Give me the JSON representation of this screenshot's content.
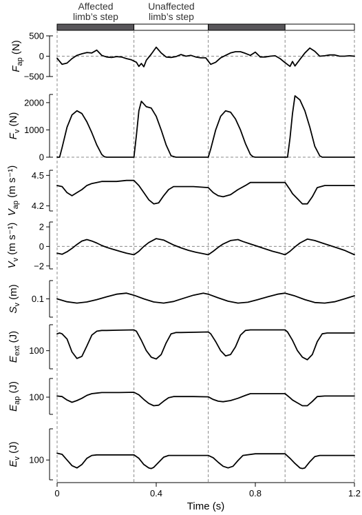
{
  "header": {
    "affected": [
      "Affected",
      "limb’s step"
    ],
    "unaffected": [
      "Unaffected",
      "limb’s step"
    ]
  },
  "colors": {
    "affected_bar": "#58565a",
    "unaffected_bar": "#ffffff",
    "trace": "#000000",
    "dashed": "#888888"
  },
  "chart_data": {
    "type": "line",
    "xlabel": "Time (s)",
    "xlim": [
      0,
      1.2
    ],
    "xticks": [
      0,
      0.4,
      0.8,
      1.2
    ],
    "xtick_labels": [
      "0",
      "0.4",
      "0.8",
      "1.2"
    ],
    "step_boundaries": [
      0,
      0.31,
      0.61,
      0.92,
      1.2
    ],
    "steps": [
      "affected",
      "unaffected",
      "affected",
      "unaffected"
    ],
    "panels": [
      {
        "id": "Fap",
        "label": {
          "main": "F",
          "sub": "ap",
          "unit": " (N)"
        },
        "ylim": [
          -500,
          500
        ],
        "ticks": [
          -500,
          0,
          500
        ],
        "tick_labels": [
          "−500",
          "0",
          "500"
        ],
        "zero_line": true,
        "x": [
          0,
          0.02,
          0.04,
          0.06,
          0.08,
          0.1,
          0.12,
          0.14,
          0.16,
          0.18,
          0.2,
          0.22,
          0.24,
          0.26,
          0.28,
          0.3,
          0.32,
          0.33,
          0.34,
          0.35,
          0.36,
          0.38,
          0.4,
          0.42,
          0.44,
          0.46,
          0.48,
          0.5,
          0.52,
          0.54,
          0.56,
          0.58,
          0.6,
          0.62,
          0.64,
          0.66,
          0.68,
          0.7,
          0.72,
          0.74,
          0.76,
          0.78,
          0.8,
          0.82,
          0.84,
          0.86,
          0.88,
          0.9,
          0.92,
          0.94,
          0.95,
          0.96,
          0.98,
          1.0,
          1.02,
          1.04,
          1.06,
          1.08,
          1.1,
          1.12,
          1.14,
          1.16,
          1.18,
          1.2
        ],
        "y": [
          -50,
          -200,
          -170,
          -60,
          20,
          60,
          90,
          80,
          150,
          20,
          -20,
          -30,
          -10,
          -20,
          -60,
          -90,
          -150,
          -250,
          -180,
          -260,
          -100,
          50,
          220,
          80,
          -20,
          -30,
          -10,
          40,
          0,
          20,
          -20,
          -40,
          -40,
          -200,
          -150,
          -40,
          20,
          80,
          110,
          110,
          70,
          20,
          100,
          -20,
          -20,
          0,
          10,
          -60,
          -160,
          -250,
          -130,
          -240,
          -80,
          80,
          200,
          120,
          0,
          10,
          30,
          30,
          0,
          0,
          10,
          0
        ]
      },
      {
        "id": "Fv",
        "label": {
          "main": "F",
          "sub": "v",
          "unit": " (N)"
        },
        "ylim": [
          0,
          2300
        ],
        "ticks": [
          0,
          1000,
          2000
        ],
        "tick_labels": [
          "0",
          "1000",
          "2000"
        ],
        "zero_line": true,
        "x": [
          0,
          0.01,
          0.02,
          0.04,
          0.06,
          0.08,
          0.1,
          0.12,
          0.14,
          0.16,
          0.18,
          0.19,
          0.2,
          0.22,
          0.3,
          0.31,
          0.32,
          0.33,
          0.34,
          0.35,
          0.36,
          0.38,
          0.4,
          0.42,
          0.44,
          0.46,
          0.48,
          0.5,
          0.6,
          0.61,
          0.62,
          0.64,
          0.66,
          0.68,
          0.7,
          0.72,
          0.74,
          0.76,
          0.78,
          0.79,
          0.8,
          0.82,
          0.92,
          0.93,
          0.94,
          0.95,
          0.96,
          0.98,
          1.0,
          1.02,
          1.04,
          1.06,
          1.07,
          1.08,
          1.2
        ],
        "y": [
          0,
          0,
          350,
          1100,
          1550,
          1700,
          1600,
          1300,
          900,
          450,
          100,
          20,
          0,
          0,
          0,
          0,
          800,
          1700,
          2050,
          1950,
          1850,
          1800,
          1500,
          1000,
          450,
          50,
          0,
          0,
          0,
          0,
          300,
          1000,
          1500,
          1700,
          1650,
          1400,
          1000,
          500,
          100,
          20,
          0,
          0,
          0,
          0,
          700,
          1600,
          2250,
          2100,
          1700,
          1100,
          400,
          50,
          0,
          0,
          0
        ]
      },
      {
        "id": "Vap",
        "label": {
          "main": "V",
          "sub": "ap",
          "unit": " (m s⁻¹)"
        },
        "ylim": [
          4.15,
          4.55
        ],
        "ticks": [
          4.2,
          4.5
        ],
        "tick_labels": [
          "4.2",
          "4.5"
        ],
        "zero_line": false,
        "x": [
          0,
          0.02,
          0.04,
          0.06,
          0.08,
          0.1,
          0.12,
          0.14,
          0.16,
          0.18,
          0.2,
          0.24,
          0.28,
          0.31,
          0.33,
          0.35,
          0.37,
          0.39,
          0.41,
          0.43,
          0.45,
          0.47,
          0.5,
          0.55,
          0.61,
          0.63,
          0.65,
          0.67,
          0.7,
          0.73,
          0.76,
          0.78,
          0.8,
          0.85,
          0.92,
          0.94,
          0.95,
          0.97,
          0.99,
          1.01,
          1.03,
          1.05,
          1.08,
          1.12,
          1.2
        ],
        "y": [
          4.4,
          4.39,
          4.33,
          4.3,
          4.33,
          4.36,
          4.4,
          4.42,
          4.43,
          4.44,
          4.44,
          4.44,
          4.45,
          4.45,
          4.4,
          4.33,
          4.26,
          4.22,
          4.23,
          4.3,
          4.36,
          4.39,
          4.39,
          4.39,
          4.38,
          4.33,
          4.3,
          4.29,
          4.31,
          4.36,
          4.4,
          4.43,
          4.43,
          4.43,
          4.43,
          4.36,
          4.32,
          4.27,
          4.22,
          4.22,
          4.29,
          4.38,
          4.4,
          4.4,
          4.4
        ]
      },
      {
        "id": "Vv",
        "label": {
          "main": "V",
          "sub": "v",
          "unit": " (m s⁻¹)"
        },
        "ylim": [
          -2.3,
          2.5
        ],
        "ticks": [
          -2,
          0,
          2
        ],
        "tick_labels": [
          "−2",
          "0",
          "2"
        ],
        "zero_line": true,
        "x": [
          0,
          0.02,
          0.04,
          0.06,
          0.08,
          0.1,
          0.12,
          0.14,
          0.16,
          0.18,
          0.2,
          0.22,
          0.24,
          0.26,
          0.28,
          0.31,
          0.33,
          0.35,
          0.37,
          0.4,
          0.43,
          0.45,
          0.47,
          0.5,
          0.53,
          0.56,
          0.59,
          0.61,
          0.63,
          0.65,
          0.67,
          0.7,
          0.73,
          0.75,
          0.78,
          0.81,
          0.84,
          0.87,
          0.9,
          0.92,
          0.94,
          0.96,
          0.98,
          1.01,
          1.04,
          1.07,
          1.1,
          1.13,
          1.16,
          1.2
        ],
        "y": [
          -0.7,
          -0.8,
          -0.55,
          -0.2,
          0.2,
          0.55,
          0.7,
          0.55,
          0.35,
          0.1,
          -0.1,
          -0.25,
          -0.4,
          -0.55,
          -0.7,
          -0.85,
          -0.5,
          0,
          0.4,
          0.8,
          0.65,
          0.4,
          0.15,
          -0.15,
          -0.4,
          -0.6,
          -0.75,
          -0.85,
          -0.5,
          -0.1,
          0.25,
          0.6,
          0.7,
          0.5,
          0.25,
          0,
          -0.25,
          -0.5,
          -0.7,
          -0.85,
          -0.5,
          -0.05,
          0.35,
          0.75,
          0.6,
          0.35,
          0.1,
          -0.15,
          -0.4,
          -0.85
        ]
      },
      {
        "id": "Sv",
        "label": {
          "main": "S",
          "sub": "v",
          "unit": " (m)"
        },
        "ylim": [
          0.03,
          0.17
        ],
        "ticks": [
          0.1
        ],
        "tick_labels": [
          "0.1"
        ],
        "zero_line": false,
        "x": [
          0,
          0.04,
          0.08,
          0.12,
          0.16,
          0.2,
          0.24,
          0.28,
          0.31,
          0.35,
          0.39,
          0.43,
          0.47,
          0.51,
          0.55,
          0.59,
          0.61,
          0.65,
          0.69,
          0.73,
          0.77,
          0.81,
          0.85,
          0.89,
          0.92,
          0.96,
          1.0,
          1.04,
          1.08,
          1.12,
          1.16,
          1.2
        ],
        "y": [
          0.1,
          0.089,
          0.084,
          0.088,
          0.097,
          0.108,
          0.118,
          0.122,
          0.114,
          0.1,
          0.088,
          0.084,
          0.09,
          0.102,
          0.114,
          0.122,
          0.118,
          0.104,
          0.091,
          0.084,
          0.087,
          0.097,
          0.108,
          0.118,
          0.122,
          0.111,
          0.097,
          0.086,
          0.084,
          0.089,
          0.1,
          0.112
        ]
      },
      {
        "id": "Eext",
        "label": {
          "main": "E",
          "sub": "ext",
          "unit": " (J)"
        },
        "ylim": [
          30,
          200
        ],
        "ticks": [
          100
        ],
        "tick_labels": [
          "100"
        ],
        "zero_line": false,
        "x": [
          0,
          0.01,
          0.02,
          0.04,
          0.06,
          0.08,
          0.1,
          0.12,
          0.14,
          0.16,
          0.18,
          0.2,
          0.25,
          0.31,
          0.32,
          0.34,
          0.36,
          0.38,
          0.4,
          0.42,
          0.44,
          0.46,
          0.48,
          0.5,
          0.56,
          0.61,
          0.62,
          0.64,
          0.66,
          0.68,
          0.7,
          0.72,
          0.74,
          0.76,
          0.78,
          0.8,
          0.86,
          0.92,
          0.93,
          0.95,
          0.97,
          0.99,
          1.01,
          1.03,
          1.05,
          1.07,
          1.09,
          1.12,
          1.2
        ],
        "y": [
          165,
          168,
          165,
          145,
          95,
          70,
          78,
          118,
          160,
          175,
          178,
          178,
          179,
          180,
          175,
          140,
          100,
          75,
          68,
          85,
          130,
          165,
          170,
          170,
          171,
          172,
          165,
          135,
          100,
          80,
          85,
          115,
          160,
          178,
          180,
          180,
          180,
          180,
          172,
          140,
          100,
          75,
          65,
          85,
          135,
          165,
          168,
          168,
          168
        ]
      },
      {
        "id": "Eap",
        "label": {
          "main": "E",
          "sub": "ap",
          "unit": " (J)"
        },
        "ylim": [
          40,
          165
        ],
        "ticks": [
          100
        ],
        "tick_labels": [
          "100"
        ],
        "zero_line": false,
        "x": [
          0,
          0.02,
          0.04,
          0.06,
          0.08,
          0.1,
          0.12,
          0.14,
          0.16,
          0.18,
          0.2,
          0.25,
          0.31,
          0.33,
          0.35,
          0.37,
          0.39,
          0.41,
          0.43,
          0.45,
          0.47,
          0.5,
          0.55,
          0.61,
          0.63,
          0.65,
          0.67,
          0.7,
          0.73,
          0.76,
          0.78,
          0.8,
          0.85,
          0.92,
          0.94,
          0.95,
          0.97,
          0.99,
          1.01,
          1.03,
          1.05,
          1.08,
          1.12,
          1.2
        ],
        "y": [
          104,
          102,
          90,
          82,
          88,
          96,
          106,
          112,
          114,
          116,
          116,
          116,
          117,
          108,
          92,
          78,
          70,
          72,
          86,
          98,
          102,
          102,
          102,
          101,
          92,
          86,
          84,
          88,
          96,
          106,
          112,
          112,
          112,
          112,
          98,
          90,
          80,
          70,
          70,
          85,
          102,
          104,
          104,
          104
        ]
      },
      {
        "id": "Ev",
        "label": {
          "main": "E",
          "sub": "v",
          "unit": " (J)"
        },
        "ylim": [
          65,
          155
        ],
        "ticks": [
          100
        ],
        "tick_labels": [
          "100"
        ],
        "zero_line": false,
        "x": [
          0,
          0.02,
          0.04,
          0.06,
          0.08,
          0.1,
          0.12,
          0.14,
          0.16,
          0.2,
          0.25,
          0.31,
          0.33,
          0.35,
          0.37,
          0.38,
          0.39,
          0.41,
          0.43,
          0.45,
          0.5,
          0.61,
          0.63,
          0.65,
          0.67,
          0.69,
          0.71,
          0.73,
          0.75,
          0.8,
          0.92,
          0.94,
          0.96,
          0.98,
          0.99,
          1.0,
          1.02,
          1.04,
          1.06,
          1.1,
          1.2
        ],
        "y": [
          112,
          110,
          100,
          90,
          86,
          92,
          103,
          108,
          109,
          109,
          109,
          109,
          103,
          92,
          86,
          85,
          87,
          96,
          105,
          108,
          108,
          108,
          104,
          96,
          89,
          86,
          89,
          99,
          108,
          111,
          111,
          103,
          94,
          86,
          85,
          86,
          97,
          106,
          108,
          108,
          108
        ]
      }
    ]
  }
}
